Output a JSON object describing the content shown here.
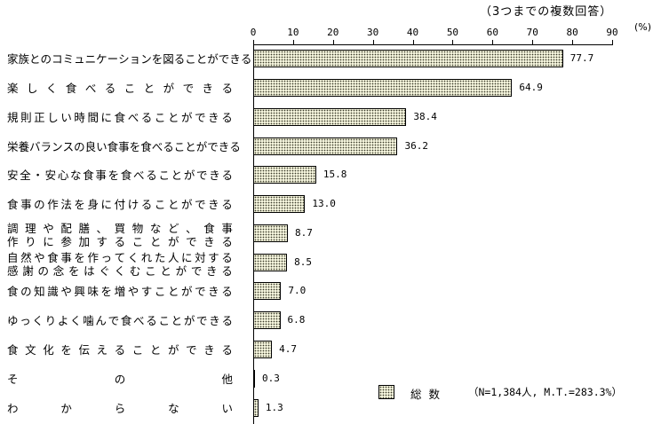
{
  "chart_data": {
    "type": "bar",
    "orientation": "horizontal",
    "title": "",
    "subtitle": "（3つまでの複数回答）",
    "xlabel": "(%)",
    "ylabel": "",
    "xlim": [
      0,
      90
    ],
    "xticks": [
      0,
      10,
      20,
      30,
      40,
      50,
      60,
      70,
      80,
      90
    ],
    "grid": false,
    "legend_position": "bottom-right",
    "categories": [
      "家族とのコミュニケーションを図ることができる",
      "楽しく食べることができる",
      "規則正しい時間に食べることができる",
      "栄養バランスの良い食事を食べることができる",
      "安全・安心な食事を食べることができる",
      "食事の作法を身に付けることができる",
      "調理や配膳、買物など、食事作りに参加することができる",
      "自然や食事を作ってくれた人に対する感謝の念をはぐくむことができる",
      "食の知識や興味を増やすことができる",
      "ゆっくりよく噛んで食べることができる",
      "食文化を伝えることができる",
      "その他",
      "わからない"
    ],
    "series": [
      {
        "name": "総数 (N=1,384人, M.T.=283.3%)",
        "values": [
          77.7,
          64.9,
          38.4,
          36.2,
          15.8,
          13.0,
          8.7,
          8.5,
          7.0,
          6.8,
          4.7,
          0.3,
          1.3
        ]
      }
    ]
  },
  "header": {
    "subtitle": "（3つまでの複数回答）",
    "unit": "(%)"
  },
  "axis": {
    "ticks": [
      "0",
      "10",
      "20",
      "30",
      "40",
      "50",
      "60",
      "70",
      "80",
      "90"
    ]
  },
  "rows": [
    {
      "label_parts": [
        "家族とのコミュニケーションを図ることができる"
      ],
      "value": "77.7"
    },
    {
      "label_parts": [
        "楽",
        "し",
        "く",
        "食",
        "べ",
        "る",
        "こ",
        "と",
        "が",
        "で",
        "き",
        "る"
      ],
      "value": "64.9"
    },
    {
      "label_parts": [
        "規則正しい時間に食べることができる"
      ],
      "value": "38.4"
    },
    {
      "label_parts": [
        "栄養バランスの良い食事を食べることができる"
      ],
      "value": "36.2"
    },
    {
      "label_parts": [
        "安全・安心な食事を食べることができる"
      ],
      "value": "15.8"
    },
    {
      "label_parts": [
        "食事の作法を身に付けることができる"
      ],
      "value": "13.0"
    },
    {
      "label_lines": [
        "調理や配膳、買物など、食事",
        "作りに参加することができる"
      ],
      "value": "8.7"
    },
    {
      "label_lines": [
        "自然や食事を作ってくれた人に対する",
        "感謝の念をはぐくむことができる"
      ],
      "value": "8.5"
    },
    {
      "label_parts": [
        "食の知識や興味を増やすことができる"
      ],
      "value": "7.0"
    },
    {
      "label_parts": [
        "ゆっくりよく噛んで食べることができる"
      ],
      "value": "6.8"
    },
    {
      "label_parts": [
        "食",
        "文",
        "化",
        "を",
        "伝",
        "え",
        "る",
        "こ",
        "と",
        "が",
        "で",
        "き",
        "る"
      ],
      "value": "4.7"
    },
    {
      "label_parts": [
        "そ",
        "の",
        "他"
      ],
      "value": "0.3"
    },
    {
      "label_parts": [
        "わ",
        "か",
        "ら",
        "な",
        "い"
      ],
      "value": "1.3"
    }
  ],
  "legend": {
    "label": "総数",
    "note": "（N=1,384人, M.T.=283.3%）"
  }
}
